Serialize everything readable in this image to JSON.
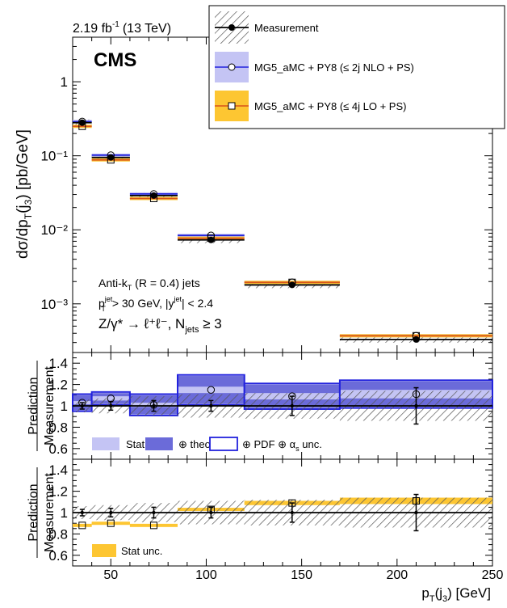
{
  "header": {
    "lumi": "2.19 fb",
    "lumi_sup": "-1",
    "energy": "(13 TeV)",
    "experiment": "CMS"
  },
  "legend": {
    "measurement": "Measurement",
    "nlo": "MG5_aMC + PY8 (≤ 2j NLO + PS)",
    "lo": "MG5_aMC + PY8 (≤ 4j LO + PS)"
  },
  "annotations": {
    "jets": "Anti-k",
    "jets_sub": "T",
    "jets_rest": " (R = 0.4) jets",
    "cuts": "> 30 GeV, |y",
    "cuts_p": "p",
    "cuts_sup": "jet",
    "cuts_end": "| < 2.4",
    "process": "Z/γ* → ℓ⁺ℓ⁻, N",
    "process_sub": "jets",
    "process_end": " ≥ 3"
  },
  "ratio_legend1": {
    "stat": "Stat",
    "theo": "⊕ theo",
    "pdf": "⊕ PDF ⊕ α",
    "pdf_sub": "s",
    "pdf_end": " unc."
  },
  "ratio_legend2": {
    "stat": "Stat unc."
  },
  "axes": {
    "ylabel_main": "dσ/dp_T(j_3)  [pb/GeV]",
    "ylabel_ratio": "Prediction / Measurement",
    "xlabel": "p_T(j_3) [GeV]"
  },
  "chart_data": {
    "type": "scatter",
    "x_bins": [
      [
        30,
        40
      ],
      [
        40,
        60
      ],
      [
        60,
        85
      ],
      [
        85,
        120
      ],
      [
        120,
        170
      ],
      [
        170,
        250
      ]
    ],
    "xlim": [
      30,
      250
    ],
    "xticks": [
      50,
      100,
      150,
      200,
      250
    ],
    "main": {
      "yscale": "log",
      "ylim": [
        0.00022,
        4
      ],
      "yticks": [
        0.001,
        0.01,
        0.1,
        1
      ],
      "ytick_labels": [
        "10⁻³",
        "10⁻²",
        "10⁻¹",
        "1"
      ],
      "series": [
        {
          "name": "Measurement",
          "x": [
            35,
            50,
            72.5,
            102.5,
            145,
            210
          ],
          "values": [
            0.28,
            0.095,
            0.029,
            0.0073,
            0.0018,
            0.00033
          ]
        },
        {
          "name": "MG5_aMC + PY8 (≤ 2j NLO + PS)",
          "x": [
            35,
            50,
            72.5,
            102.5,
            145,
            210
          ],
          "values": [
            0.29,
            0.102,
            0.0305,
            0.0084,
            0.00195,
            0.00037
          ]
        },
        {
          "name": "MG5_aMC + PY8 (≤ 4j LO + PS)",
          "x": [
            35,
            50,
            72.5,
            102.5,
            145,
            210
          ],
          "values": [
            0.25,
            0.088,
            0.0265,
            0.0077,
            0.00195,
            0.00037
          ]
        }
      ]
    },
    "ratio_nlo": {
      "ylim": [
        0.5,
        1.5
      ],
      "yticks": [
        0.6,
        0.8,
        1,
        1.2,
        1.4
      ],
      "measurement_err": [
        0.03,
        0.04,
        0.05,
        0.05,
        0.09,
        0.17
      ],
      "measurement_band": [
        0.06,
        0.07,
        0.09,
        0.11,
        0.12,
        0.14
      ],
      "values": [
        1.03,
        1.07,
        1.01,
        1.15,
        1.09,
        1.11
      ],
      "stat_unc": [
        0.015,
        0.02,
        0.02,
        0.03,
        0.03,
        0.04
      ],
      "theo_unc": [
        0.07,
        0.05,
        0.09,
        0.13,
        0.11,
        0.12
      ],
      "total_unc": [
        0.08,
        0.06,
        0.1,
        0.14,
        0.12,
        0.13
      ]
    },
    "ratio_lo": {
      "ylim": [
        0.5,
        1.5
      ],
      "yticks": [
        0.6,
        0.8,
        1,
        1.2,
        1.4
      ],
      "measurement_err": [
        0.03,
        0.04,
        0.05,
        0.05,
        0.09,
        0.17
      ],
      "measurement_band": [
        0.06,
        0.07,
        0.09,
        0.11,
        0.12,
        0.14
      ],
      "values": [
        0.88,
        0.9,
        0.88,
        1.03,
        1.09,
        1.11
      ],
      "stat_unc": [
        0.015,
        0.015,
        0.015,
        0.015,
        0.02,
        0.03
      ]
    }
  },
  "colors": {
    "nlo_line": "#2222dd",
    "nlo_stat": "#c4c4f4",
    "nlo_theo": "#6b6bd9",
    "lo_line": "#d9541a",
    "lo_band": "#fdc632",
    "hatch": "#555555"
  }
}
